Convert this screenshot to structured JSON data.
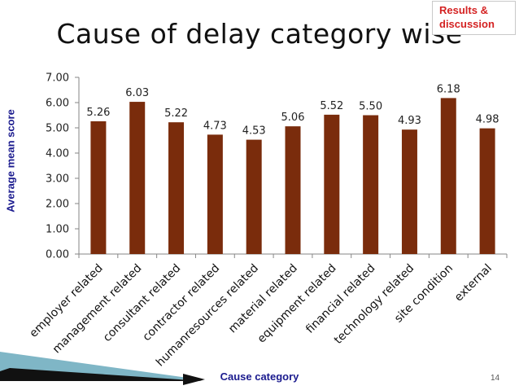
{
  "slide": {
    "title": "Cause of delay category wise",
    "tag_line1": "Results &",
    "tag_line2": "discussion",
    "page_number": "14"
  },
  "colors": {
    "bar": "#7a2c0c",
    "axis_title": "#1a1a8e",
    "tag_text": "#d42222"
  },
  "chart_data": {
    "type": "bar",
    "title": "",
    "xlabel": "Cause category",
    "ylabel": "Average mean score",
    "categories": [
      "employer related",
      "management related",
      "consultant related",
      "contractor related",
      "humanresources related",
      "material related",
      "equipment related",
      "financial related",
      "technology related",
      "site condition",
      "external"
    ],
    "values": [
      5.26,
      6.03,
      5.22,
      4.73,
      4.53,
      5.06,
      5.52,
      5.5,
      4.93,
      6.18,
      4.98
    ],
    "value_labels": [
      "5.26",
      "6.03",
      "5.22",
      "4.73",
      "4.53",
      "5.06",
      "5.52",
      "5.50",
      "4.93",
      "6.18",
      "4.98"
    ],
    "ylim": [
      0,
      7
    ],
    "yticks": [
      "0.00",
      "1.00",
      "2.00",
      "3.00",
      "4.00",
      "5.00",
      "6.00",
      "7.00"
    ],
    "grid": false,
    "legend": "none"
  }
}
